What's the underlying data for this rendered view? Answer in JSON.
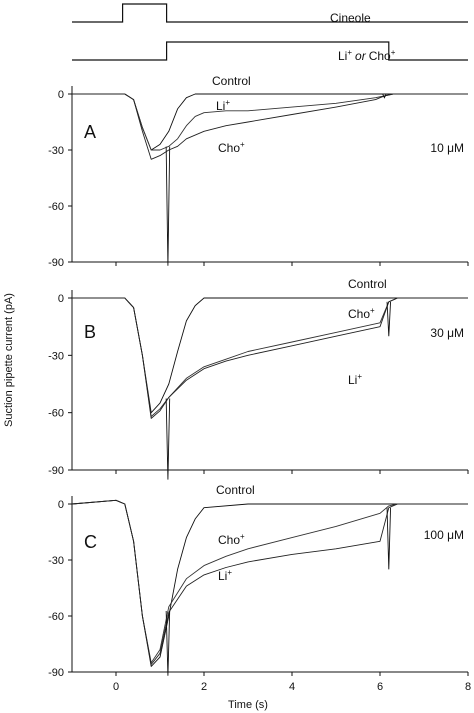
{
  "figure": {
    "ylabel": "Suction pipette current (pA)",
    "xlabel": "Time (s)"
  },
  "stimulus": {
    "cineole": {
      "label": "Cineole",
      "on": 0.15,
      "off": 1.15
    },
    "ion": {
      "label_main": "Li",
      "label_sup1": "+",
      "label_or": "or",
      "label_cho": "Cho",
      "label_sup2": "+",
      "on": 1.15,
      "off": 6.2
    }
  },
  "chart_data": [
    {
      "type": "line",
      "panel": "A",
      "concentration": "10 μM",
      "xlim": [
        -1,
        8
      ],
      "ylim": [
        -90,
        0
      ],
      "yticks": [
        0,
        -30,
        -60,
        -90
      ],
      "labels": {
        "control": "Control",
        "li": "Li",
        "cho": "Cho"
      },
      "series": [
        {
          "name": "Control",
          "x": [
            -1,
            0.2,
            0.4,
            0.6,
            0.8,
            1.0,
            1.2,
            1.4,
            1.6,
            1.8,
            2.0,
            3,
            5,
            8
          ],
          "y": [
            0,
            0,
            -3,
            -18,
            -30,
            -27,
            -20,
            -8,
            -2,
            0,
            0,
            0,
            0,
            0
          ]
        },
        {
          "name": "Li+",
          "x": [
            -1,
            0.2,
            0.4,
            0.6,
            0.8,
            1.0,
            1.2,
            1.4,
            1.6,
            1.8,
            2.0,
            2.5,
            3,
            4,
            5,
            5.9,
            6.1,
            6.3,
            7,
            8
          ],
          "y": [
            0,
            0,
            -3,
            -18,
            -30,
            -30,
            -28,
            -24,
            -17,
            -12,
            -10,
            -9,
            -9,
            -7,
            -5,
            -2,
            -1,
            0,
            0,
            0
          ]
        },
        {
          "name": "Cho+",
          "x": [
            -1,
            0.2,
            0.4,
            0.6,
            0.8,
            1.0,
            1.2,
            1.4,
            1.6,
            2.0,
            2.5,
            3,
            4,
            5,
            5.9,
            6.1,
            6.3,
            7,
            8
          ],
          "y": [
            0,
            0,
            -3,
            -20,
            -35,
            -33,
            -30,
            -28,
            -24,
            -20,
            -17,
            -15,
            -11,
            -7,
            -3,
            -1,
            0,
            0,
            0
          ]
        }
      ]
    },
    {
      "type": "line",
      "panel": "B",
      "concentration": "30 μM",
      "xlim": [
        -1,
        8
      ],
      "ylim": [
        -90,
        0
      ],
      "yticks": [
        0,
        -30,
        -60,
        -90
      ],
      "labels": {
        "control": "Control",
        "li": "Li",
        "cho": "Cho"
      },
      "series": [
        {
          "name": "Control",
          "x": [
            -1,
            0.2,
            0.4,
            0.6,
            0.8,
            1.0,
            1.2,
            1.4,
            1.6,
            1.8,
            2.0,
            3,
            5,
            8
          ],
          "y": [
            0,
            0,
            -5,
            -30,
            -60,
            -55,
            -45,
            -28,
            -12,
            -4,
            0,
            0,
            0,
            0
          ]
        },
        {
          "name": "Cho+",
          "x": [
            -1,
            0.2,
            0.4,
            0.6,
            0.8,
            1.0,
            1.2,
            1.6,
            2.0,
            2.5,
            3,
            4,
            5,
            6.0,
            6.2,
            6.4,
            7,
            8
          ],
          "y": [
            0,
            0,
            -5,
            -30,
            -62,
            -58,
            -52,
            -42,
            -36,
            -32,
            -28,
            -23,
            -18,
            -13,
            -2,
            0,
            0,
            0
          ]
        },
        {
          "name": "Li+",
          "x": [
            -1,
            0.2,
            0.4,
            0.6,
            0.8,
            1.0,
            1.2,
            1.6,
            2.0,
            2.5,
            3,
            4,
            5,
            6.0,
            6.2,
            6.4,
            7,
            8
          ],
          "y": [
            0,
            0,
            -5,
            -30,
            -63,
            -59,
            -52,
            -43,
            -37,
            -33,
            -30,
            -25,
            -20,
            -15,
            -2,
            0,
            0,
            0
          ]
        }
      ]
    },
    {
      "type": "line",
      "panel": "C",
      "concentration": "100 μM",
      "xlim": [
        -1,
        8
      ],
      "ylim": [
        -90,
        0
      ],
      "yticks": [
        0,
        -30,
        -60,
        -90
      ],
      "labels": {
        "control": "Control",
        "li": "Li",
        "cho": "Cho"
      },
      "series": [
        {
          "name": "Control",
          "x": [
            -1,
            0,
            0.2,
            0.4,
            0.6,
            0.8,
            1.0,
            1.2,
            1.4,
            1.6,
            1.8,
            2.0,
            3,
            5,
            8
          ],
          "y": [
            0,
            2,
            0,
            -20,
            -60,
            -87,
            -82,
            -60,
            -35,
            -18,
            -8,
            -2,
            0,
            0,
            0
          ]
        },
        {
          "name": "Cho+",
          "x": [
            -1,
            0,
            0.2,
            0.4,
            0.6,
            0.8,
            1.0,
            1.2,
            1.6,
            2.0,
            2.5,
            3,
            4,
            5,
            6.0,
            6.2,
            6.4,
            7,
            8
          ],
          "y": [
            0,
            2,
            0,
            -20,
            -60,
            -85,
            -78,
            -55,
            -40,
            -33,
            -28,
            -24,
            -18,
            -12,
            -5,
            -1,
            0,
            0,
            0
          ]
        },
        {
          "name": "Li+",
          "x": [
            -1,
            0,
            0.2,
            0.4,
            0.6,
            0.8,
            1.0,
            1.2,
            1.6,
            2.0,
            2.5,
            3,
            4,
            5,
            6.0,
            6.2,
            6.4,
            7,
            8
          ],
          "y": [
            0,
            2,
            0,
            -20,
            -60,
            -86,
            -80,
            -58,
            -44,
            -38,
            -34,
            -31,
            -27,
            -24,
            -20,
            -2,
            0,
            0,
            0
          ]
        }
      ]
    }
  ],
  "xticks": [
    0,
    2,
    4,
    6,
    8
  ]
}
